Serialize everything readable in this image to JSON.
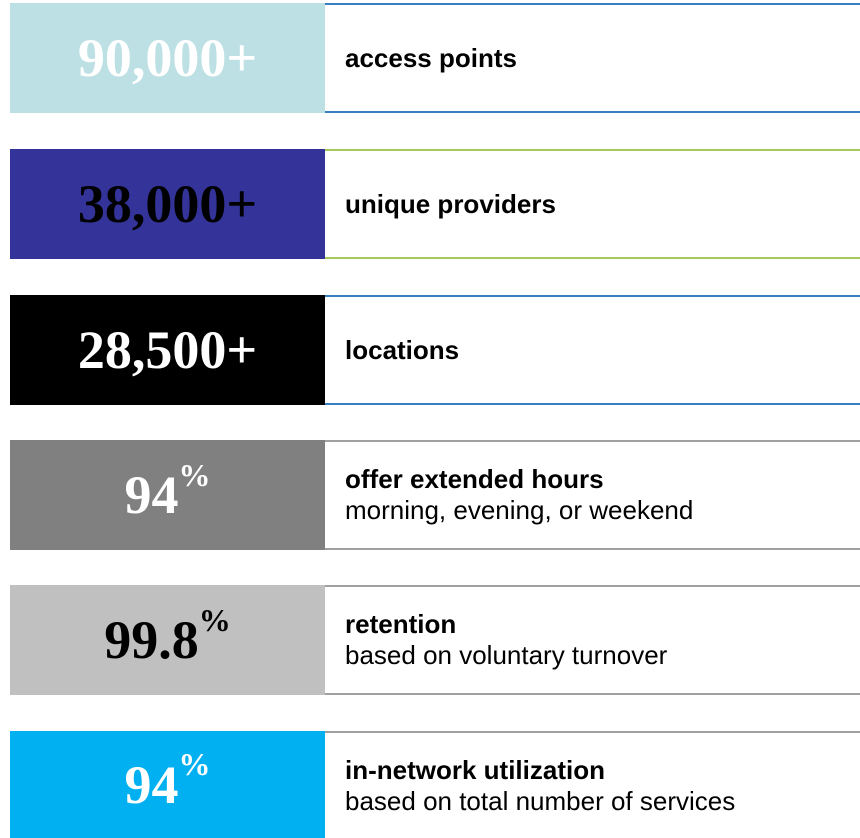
{
  "rows": [
    {
      "stat": "90,000+",
      "label": "access points"
    },
    {
      "stat": "38,000+",
      "label": "unique providers"
    },
    {
      "stat": "28,500+",
      "label": "locations"
    },
    {
      "stat": "94",
      "unit": "%",
      "label": "offer extended hours",
      "sublabel": "morning, evening, or weekend"
    },
    {
      "stat": "99.8",
      "unit": "%",
      "label": "retention",
      "sublabel": "based on voluntary turnover"
    },
    {
      "stat": "94",
      "unit": "%",
      "label": "in-network utilization",
      "sublabel": "based on total number of services"
    }
  ]
}
